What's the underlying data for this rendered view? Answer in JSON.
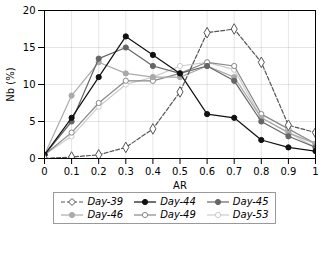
{
  "chart_data": {
    "type": "line",
    "x": [
      0.0,
      0.1,
      0.2,
      0.3,
      0.4,
      0.5,
      0.6,
      0.7,
      0.8,
      0.9,
      1.0
    ],
    "series": [
      {
        "name": "Day-39",
        "color": "#555555",
        "marker": "diamond-open",
        "line_style": "dashed",
        "values": [
          0.0,
          0.2,
          0.5,
          1.5,
          4.0,
          9.0,
          17.0,
          17.5,
          13.0,
          4.5,
          3.5
        ]
      },
      {
        "name": "Day-44",
        "color": "#111111",
        "marker": "circle",
        "line_style": "solid",
        "values": [
          0.5,
          5.5,
          11.0,
          16.5,
          14.0,
          11.5,
          6.0,
          5.5,
          2.5,
          1.5,
          1.0
        ]
      },
      {
        "name": "Day-45",
        "color": "#666666",
        "marker": "circle",
        "line_style": "solid",
        "values": [
          0.5,
          5.0,
          13.5,
          15.0,
          12.5,
          11.5,
          12.5,
          10.5,
          5.0,
          3.0,
          1.5
        ]
      },
      {
        "name": "Day-46",
        "color": "#aaaaaa",
        "marker": "circle",
        "line_style": "solid",
        "values": [
          0.5,
          8.5,
          13.0,
          11.5,
          11.0,
          11.0,
          12.5,
          11.0,
          5.5,
          3.5,
          2.0
        ]
      },
      {
        "name": "Day-49",
        "color": "#888888",
        "marker": "circle-open",
        "line_style": "solid",
        "values": [
          0.5,
          3.5,
          7.5,
          10.5,
          10.5,
          11.5,
          13.0,
          12.5,
          6.0,
          4.0,
          2.0
        ]
      },
      {
        "name": "Day-53",
        "color": "#cccccc",
        "marker": "circle-open",
        "line_style": "solid",
        "values": [
          0.5,
          3.0,
          7.0,
          10.0,
          11.0,
          12.5,
          13.0,
          12.0,
          5.5,
          3.5,
          1.5
        ]
      }
    ],
    "xlabel": "AR",
    "ylabel": "Nb (%)",
    "xlim": [
      0,
      1
    ],
    "ylim": [
      0,
      20
    ],
    "xticks": [
      0,
      0.1,
      0.2,
      0.3,
      0.4,
      0.5,
      0.6,
      0.7,
      0.8,
      0.9,
      1
    ],
    "yticks": [
      0,
      5,
      10,
      15,
      20
    ],
    "grid": true,
    "legend": "bottom"
  }
}
